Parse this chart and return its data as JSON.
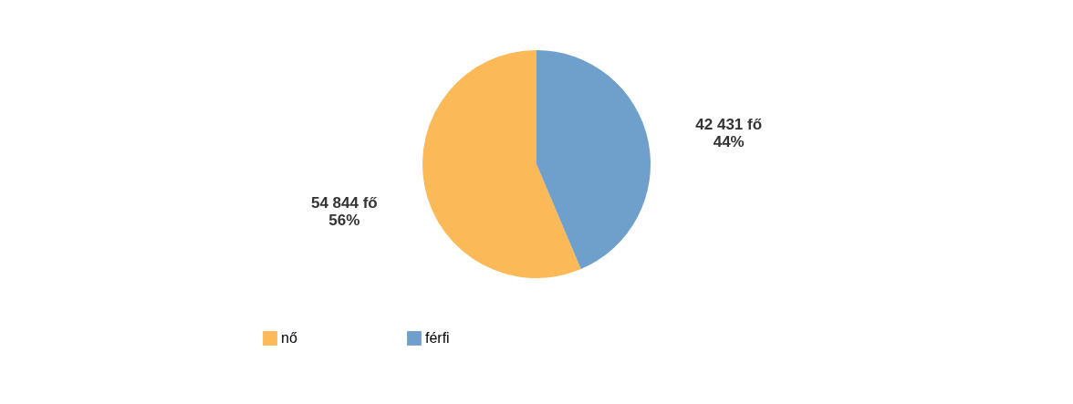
{
  "chart_data": {
    "type": "pie",
    "categories": [
      "nő",
      "férfi"
    ],
    "values": [
      54844,
      42431
    ],
    "colors": [
      "#fbb958",
      "#6fa0cb"
    ],
    "value_labels": [
      "54 844 fő\n56%",
      "42 431 fő\n44%"
    ],
    "legend": "bottom"
  }
}
